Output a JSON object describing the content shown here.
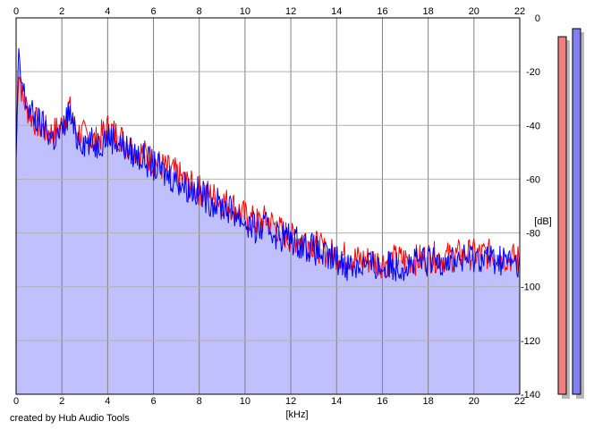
{
  "chart_data": {
    "type": "area",
    "xlabel": "[kHz]",
    "ylabel": "[dB]",
    "x_ticks": [
      0,
      2,
      4,
      6,
      8,
      10,
      12,
      14,
      16,
      18,
      20,
      22
    ],
    "y_ticks": [
      0,
      -20,
      -40,
      -60,
      -80,
      -100,
      -120,
      -140
    ],
    "xlim": [
      0,
      22
    ],
    "ylim": [
      -140,
      0
    ],
    "grid": true,
    "fill_color": "#c0c0ff",
    "x": [
      0.0,
      0.1,
      0.2,
      0.3,
      0.5,
      0.7,
      1.0,
      1.3,
      1.6,
      2.0,
      2.3,
      2.6,
      3.0,
      3.5,
      4.0,
      4.5,
      5.0,
      5.5,
      6.0,
      6.5,
      7.0,
      7.5,
      8.0,
      8.5,
      9.0,
      9.5,
      10.0,
      10.5,
      11.0,
      11.5,
      12.0,
      12.5,
      13.0,
      13.5,
      14.0,
      14.5,
      15.0,
      15.5,
      16.0,
      16.5,
      17.0,
      17.5,
      18.0,
      18.5,
      19.0,
      19.5,
      20.0,
      20.5,
      21.0,
      21.5,
      22.0
    ],
    "series": [
      {
        "color": "#ff0000",
        "values": [
          -50,
          -18,
          -24,
          -30,
          -34,
          -37,
          -40,
          -42,
          -43,
          -40,
          -33,
          -42,
          -44,
          -46,
          -41,
          -44,
          -48,
          -50,
          -53,
          -56,
          -58,
          -62,
          -64,
          -66,
          -68,
          -70,
          -74,
          -76,
          -75,
          -79,
          -82,
          -82,
          -84,
          -87,
          -88,
          -89,
          -90,
          -90,
          -91,
          -90,
          -90,
          -90,
          -89,
          -89,
          -89,
          -88,
          -88,
          -88,
          -88,
          -89,
          -90
        ]
      },
      {
        "color": "#0000ff",
        "values": [
          -55,
          -15,
          -22,
          -27,
          -33,
          -36,
          -39,
          -41,
          -45,
          -43,
          -35,
          -44,
          -46,
          -47,
          -44,
          -46,
          -50,
          -52,
          -55,
          -58,
          -60,
          -63,
          -65,
          -68,
          -70,
          -72,
          -76,
          -79,
          -78,
          -81,
          -82,
          -84,
          -86,
          -89,
          -90,
          -92,
          -92,
          -92,
          -93,
          -92,
          -92,
          -91,
          -91,
          -90,
          -90,
          -90,
          -89,
          -89,
          -90,
          -90,
          -93
        ]
      }
    ],
    "level_meters": [
      {
        "color": "#f08080",
        "value_db": -7
      },
      {
        "color": "#8080f0",
        "value_db": -4
      }
    ]
  },
  "footer": {
    "credit": "created by Hub Audio Tools"
  }
}
